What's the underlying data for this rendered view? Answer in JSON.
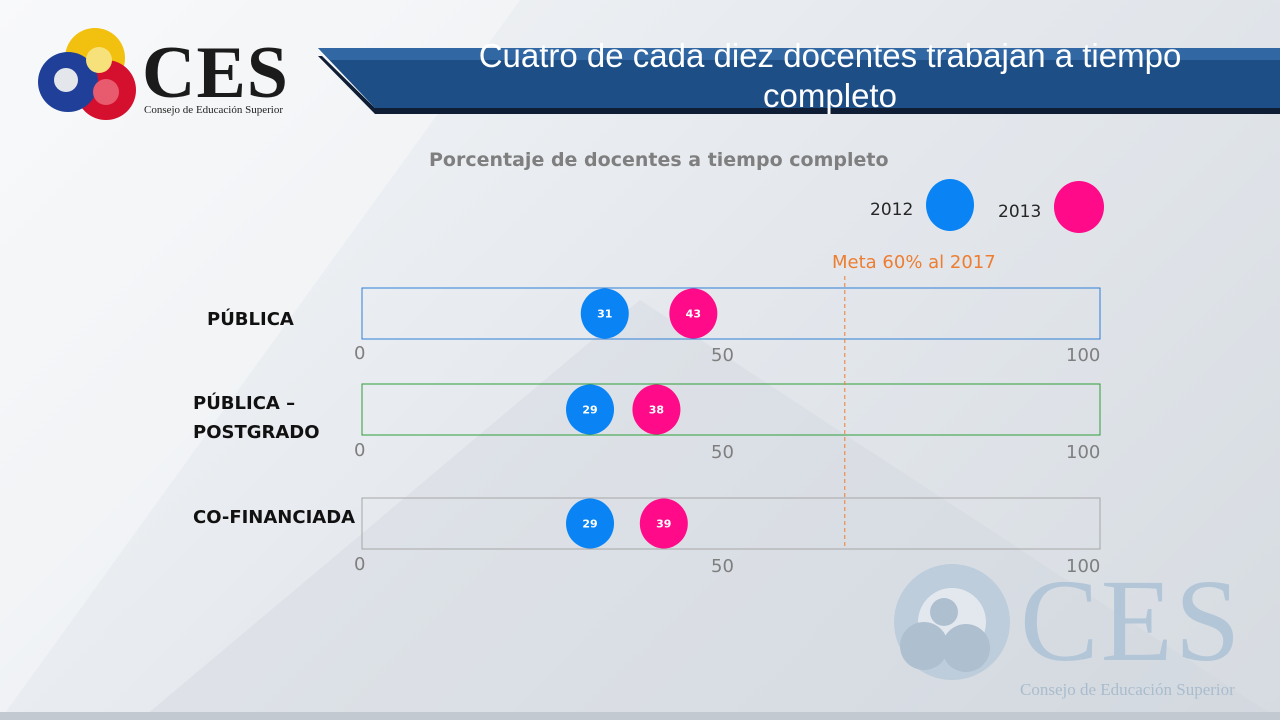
{
  "header": {
    "title": "Cuatro de cada diez docentes trabajan a tiempo completo",
    "logo_text": "CES",
    "logo_subtitle": "Consejo de Educación Superior"
  },
  "watermark": {
    "text": "CES",
    "subtitle": "Consejo de Educación Superior"
  },
  "colors": {
    "series_2012": "#0a84f5",
    "series_2013": "#ff0a88",
    "goal_line": "#ed7d31",
    "header_band": "#1d4f86"
  },
  "chart_data": {
    "type": "scatter",
    "title": "Porcentaje de docentes a tiempo completo",
    "categories": [
      "PÚBLICA",
      "PÚBLICA – POSTGRADO",
      "CO-FINANCIADA"
    ],
    "category_lines": [
      [
        "PÚBLICA"
      ],
      [
        "PÚBLICA –",
        "POSTGRADO"
      ],
      [
        "CO-FINANCIADA"
      ]
    ],
    "series": [
      {
        "name": "2012",
        "values": [
          31,
          29,
          29
        ],
        "labels": [
          "31",
          "29",
          "29"
        ]
      },
      {
        "name": "2013",
        "values": [
          43,
          38,
          39
        ],
        "labels": [
          "43",
          "38",
          "39"
        ]
      }
    ],
    "xlim": [
      0,
      100
    ],
    "ticks": [
      {
        "value": 0,
        "label": "0"
      },
      {
        "value": 50,
        "label": "50"
      },
      {
        "value": 100,
        "label": "100"
      }
    ],
    "goal": {
      "value": 60,
      "label": "Meta 60% al 2017"
    },
    "row_border_colors": [
      "#2e7fd6",
      "#2e9e3a",
      "#a6a6a6"
    ],
    "legend_placement": "top-right",
    "grid": false
  }
}
